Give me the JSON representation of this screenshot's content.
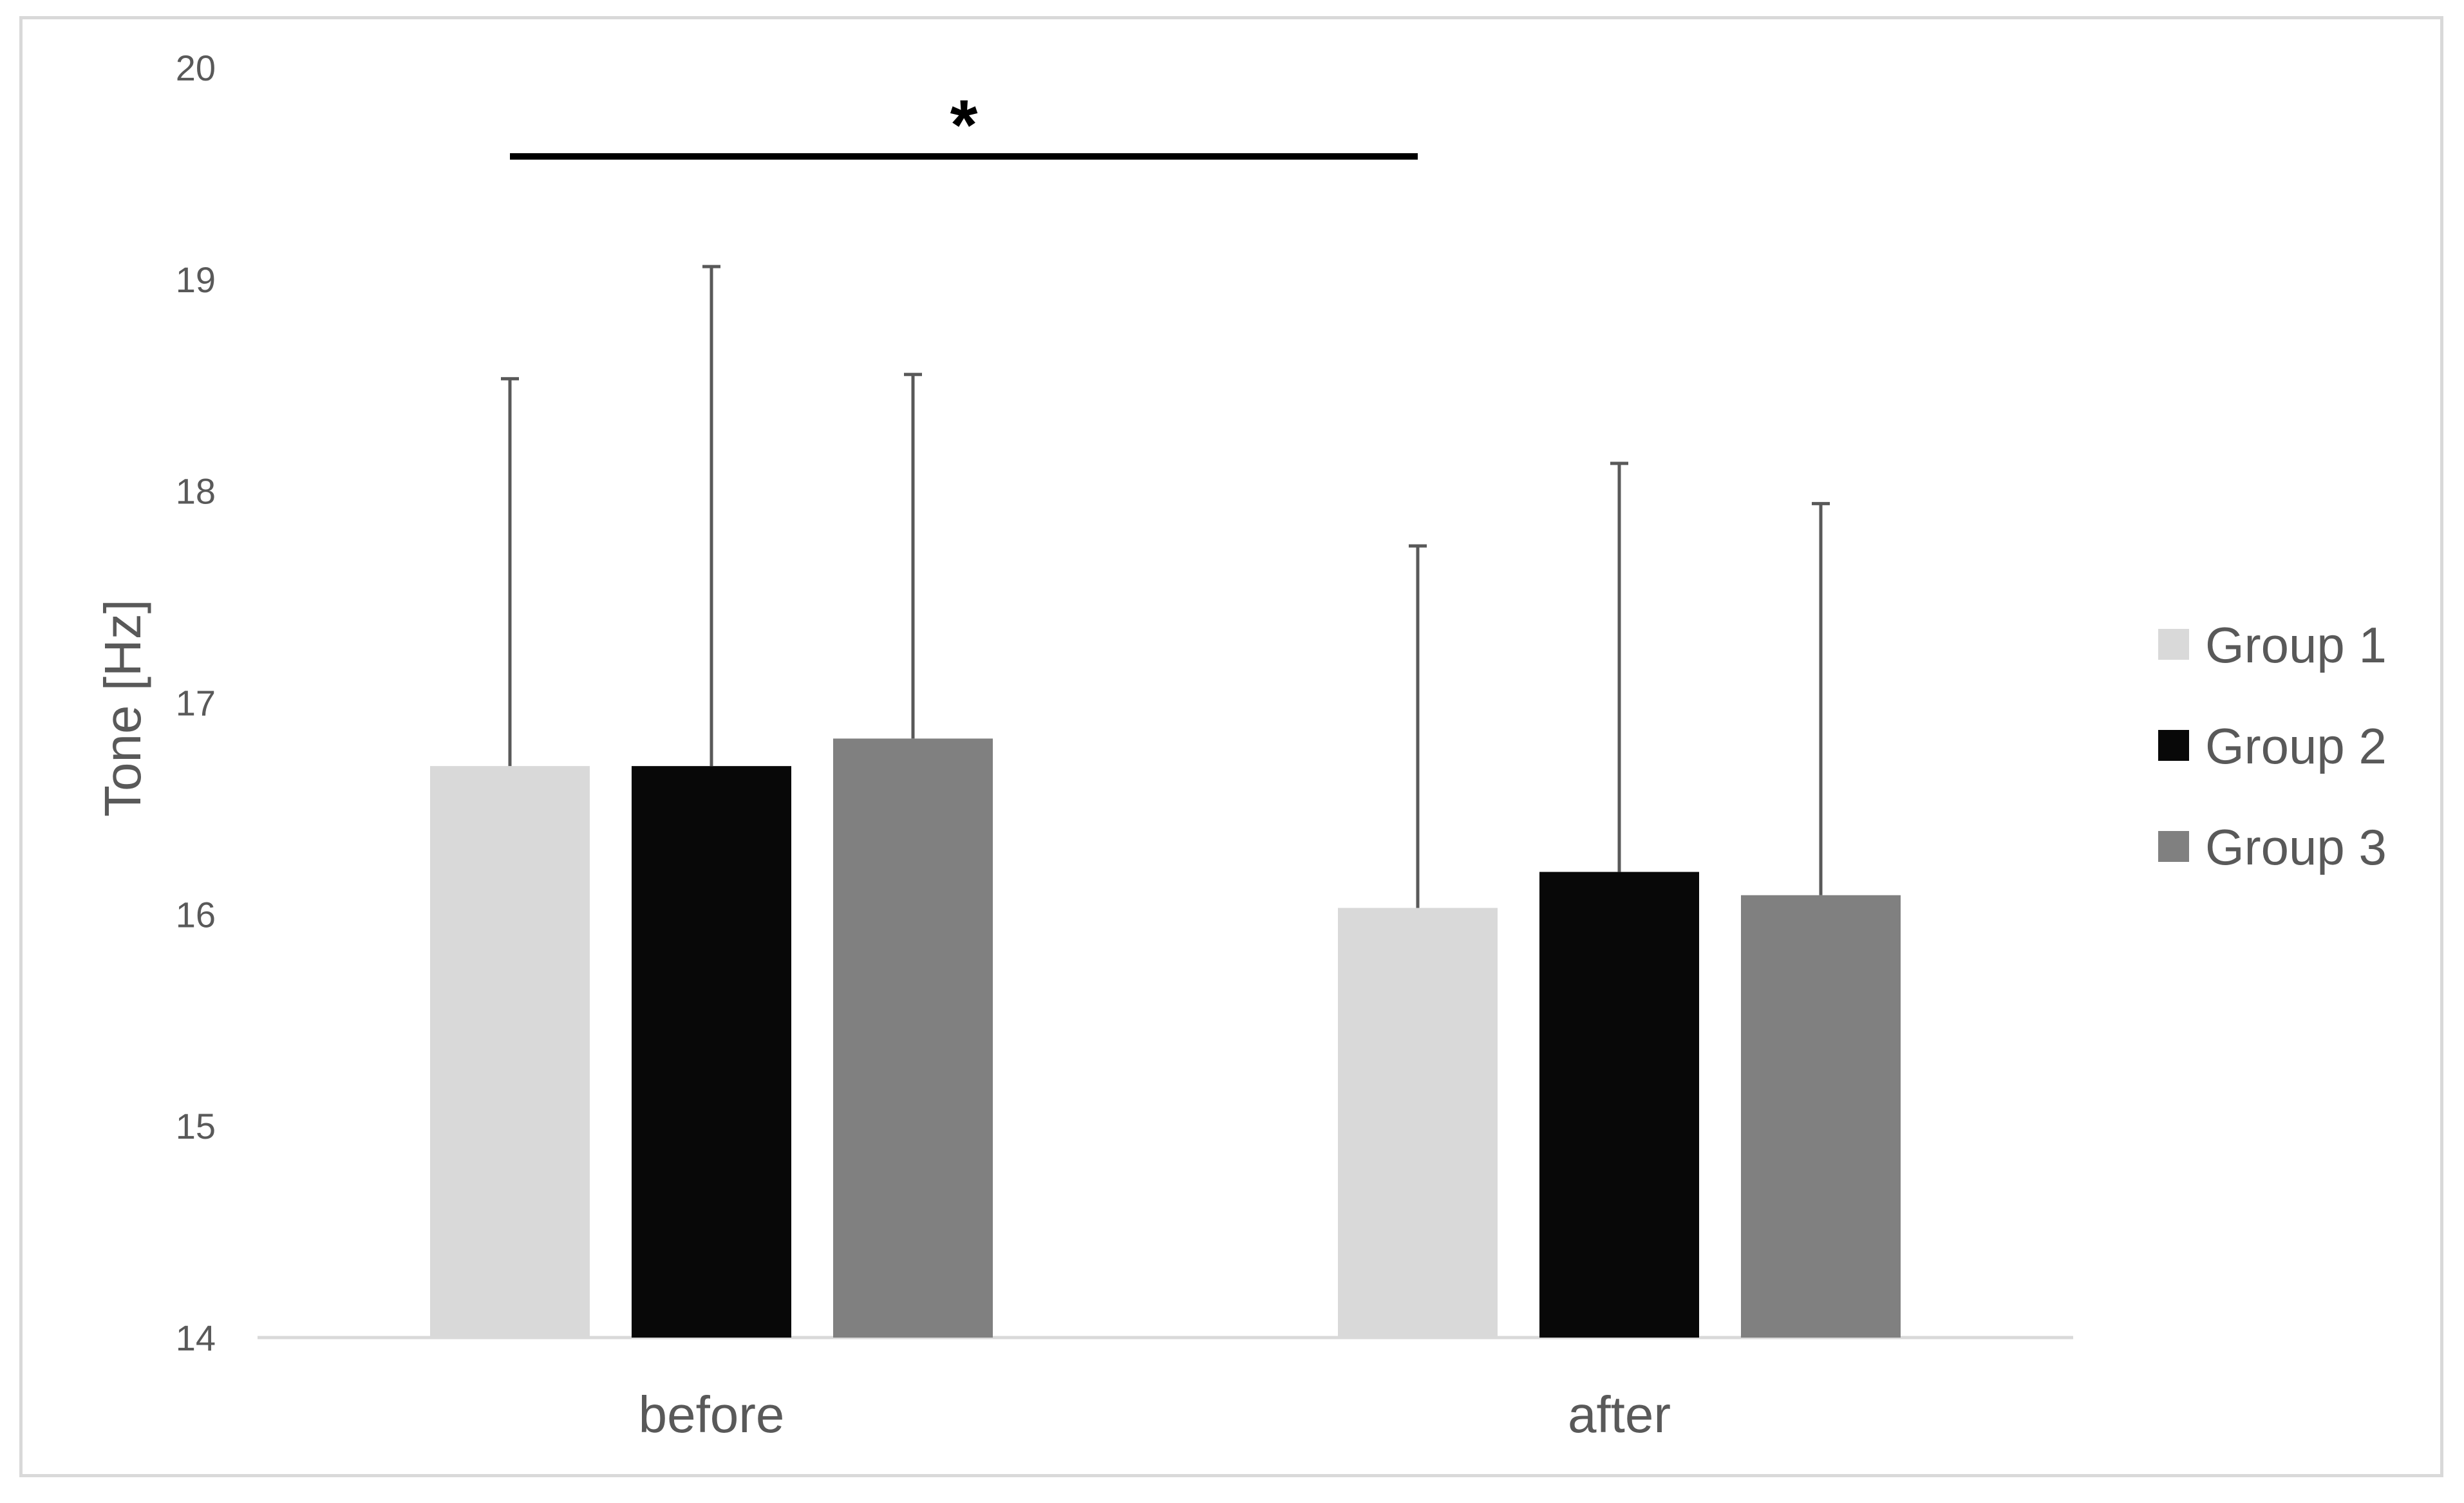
{
  "chart_data": {
    "type": "bar",
    "title": "",
    "xlabel": "",
    "ylabel": "Tone [Hz]",
    "ylim": [
      14,
      20
    ],
    "yticks": [
      14,
      15,
      16,
      17,
      18,
      19,
      20
    ],
    "categories": [
      "before",
      "after"
    ],
    "series": [
      {
        "name": "Group 1",
        "color": "#d9d9d9",
        "values": [
          16.7,
          16.03
        ],
        "errors": [
          1.83,
          1.71
        ]
      },
      {
        "name": "Group 2",
        "color": "#080808",
        "values": [
          16.7,
          16.2
        ],
        "errors": [
          2.36,
          1.93
        ]
      },
      {
        "name": "Group 3",
        "color": "#808080",
        "values": [
          16.83,
          16.09
        ],
        "errors": [
          1.72,
          1.85
        ]
      }
    ],
    "annotation": {
      "text": "*",
      "from_category": "before",
      "to_category": "after"
    },
    "grid": false,
    "legend_position": "right"
  }
}
